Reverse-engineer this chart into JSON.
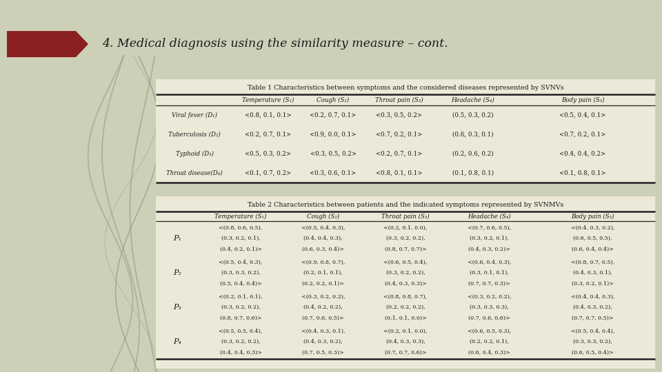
{
  "title": "4. Medical diagnosis using the similarity measure – cont.",
  "bg_color": "#cdd0b8",
  "header_color": "#8b2020",
  "title_color": "#1a1a1a",
  "table_bg": "#f0ede0",
  "table1_title": "Table 1 Characteristics between symptoms and the considered diseases represented by SVNVs",
  "table1_headers": [
    "",
    "Temperature (S₁)",
    "Cough (S₂)",
    "Throat pain (S₃)",
    "Headache (S₄)",
    "Body pain (S₅)"
  ],
  "table1_rows": [
    [
      "Viral fever (D₁)",
      "<0.8, 0.1, 0.1>",
      "<0.2, 0.7, 0.1>",
      "<0.3, 0.5, 0.2>",
      "(0.5, 0.3, 0.2)",
      "<0.5, 0.4, 0.1>"
    ],
    [
      "Tuberculosis (D₂)",
      "<0.2, 0.7, 0.1>",
      "<0.9, 0.0, 0.1>",
      "<0.7, 0.2, 0.1>",
      "(0.6, 0.3, 0.1)",
      "<0.7, 0.2, 0.1>"
    ],
    [
      "Typhoid (D₃)",
      "<0.5, 0.3, 0.2>",
      "<0.3, 0.5, 0.2>",
      "<0.2, 0.7, 0.1>",
      "(0.2, 0.6, 0.2)",
      "<0.4, 0.4, 0.2>"
    ],
    [
      "Throat disease(D₄)",
      "<0.1, 0.7, 0.2>",
      "<0.3, 0.6, 0.1>",
      "<0.8, 0.1, 0.1>",
      "(0.1, 0.8, 0.1)",
      "<0.1, 0.8, 0.1>"
    ]
  ],
  "table2_title": "Table 2 Characteristics between patients and the indicated symptoms represented by SVNMVs",
  "table2_headers": [
    "",
    "Temperature (S₁)",
    "Cough (S₂)",
    "Throat pain (S₃)",
    "Headache (S₄)",
    "Body pain (S₅)"
  ],
  "table2_rows": [
    [
      "P₁",
      "<(0.8, 0.6, 0.5),|(0.3, 0.2, 0.1),|(0.4, 0.2, 0.1)>",
      "<(0.5, 0.4, 0.3),|(0.4, 0.4, 0.3),|(0.6, 0.3, 0.4)>",
      "<(0.2, 0.1, 0.0),|(0.3, 0.2, 0.2),|(0.8, 0.7, 0.7)>",
      "<(0.7, 0.6, 0.5),|(0.3, 0.2, 0.1),|(0.4, 0.3, 0.2)>",
      "<(0.4, 0.3, 0.2),|(0.6, 0.5, 0.5),|(0.6, 0.4, 0.4)>"
    ],
    [
      "P₂",
      "<(0.5, 0.4, 0.3),|(0.3, 0.3, 0.2),|(0.5, 0.4, 0.4)>",
      "<(0.9, 0.8, 0.7),|(0.2, 0.1, 0.1),|(0.2, 0.2, 0.1)>",
      "<(0.6, 0.5, 0.4),|(0.3, 0.2, 0.2),|(0.4, 0.3, 0.3)>",
      "<(0.6, 0.4, 0.3),|(0.3, 0.1, 0.1),|(0.7, 0.7, 0.3)>",
      "<(0.8, 0.7, 0.5),|(0.4, 0.3, 0.1),|(0.3, 0.2, 0.1)>"
    ],
    [
      "P₃",
      "<(0.2, 0.1, 0.1),|(0.3, 0.2, 0.2),|(0.8, 0.7, 0.6)>",
      "<(0.3, 0.2, 0.2),|(0.4, 0.2, 0.2),|(0.7, 0.6, 0.5)>",
      "<(0.8, 0.8, 0.7),|(0.2, 0.2, 0.2),|(0.1, 0.1, 0.0)>",
      "<(0.3, 0.2, 0.2),|(0.3, 0.3, 0.3),|(0.7, 0.6, 0.6)>",
      "<(0.4, 0.4, 0.3),|(0.4, 0.3, 0.2),|(0.7, 0.7, 0.5)>"
    ],
    [
      "P₄",
      "<(0.5, 0.5, 0.4),|(0.3, 0.2, 0.2),|(0.4, 0.4, 0.3)>",
      "<(0.4, 0.3, 0.1),|(0.4, 0.3, 0.2),|(0.7, 0.5, 0.3)>",
      "<(0.2, 0.1, 0.0),|(0.4, 0.3, 0.3),|(0.7, 0.7, 0.6)>",
      "<(0.6, 0.5, 0.3),|(0.2, 0.2, 0.1),|(0.6, 0.4, 0.3)>",
      "<(0.5, 0.4, 0.4),|(0.3, 0.3, 0.2),|(0.6, 0.5, 0.4)>"
    ]
  ]
}
